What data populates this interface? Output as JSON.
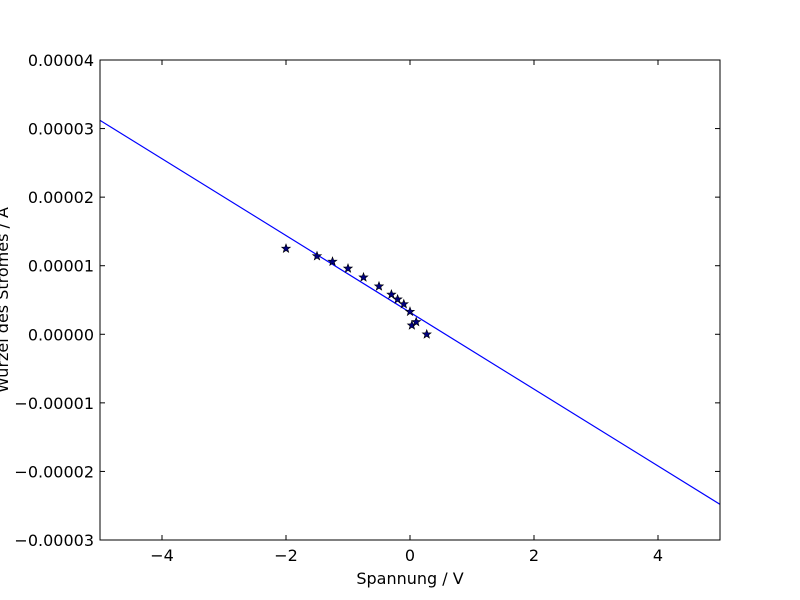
{
  "chart_data": {
    "type": "scatter",
    "title": "",
    "xlabel": "Spannung / V",
    "ylabel": "Wurzel des Stromes / A",
    "xlim": [
      -5,
      5
    ],
    "ylim": [
      -3e-05,
      4e-05
    ],
    "xticks": [
      -4,
      -2,
      0,
      2,
      4
    ],
    "xtick_labels": [
      "−4",
      "−2",
      "0",
      "2",
      "4"
    ],
    "yticks": [
      -3e-05,
      -2e-05,
      -1e-05,
      0,
      1e-05,
      2e-05,
      3e-05,
      4e-05
    ],
    "ytick_labels": [
      "−0.00003",
      "−0.00002",
      "−0.00001",
      "0.00000",
      "0.00001",
      "0.00002",
      "0.00003",
      "0.00004"
    ],
    "grid": false,
    "series": [
      {
        "kind": "scatter",
        "marker": "star",
        "color": "#000080",
        "x": [
          -2.0,
          -1.5,
          -1.25,
          -1.0,
          -0.75,
          -0.5,
          -0.3,
          -0.2,
          -0.1,
          0.0,
          0.03,
          0.1,
          0.27
        ],
        "y": [
          1.25e-05,
          1.14e-05,
          1.06e-05,
          9.6e-06,
          8.3e-06,
          7e-06,
          5.8e-06,
          5.1e-06,
          4.4e-06,
          3.3e-06,
          1.3e-06,
          1.8e-06,
          0.0
        ]
      },
      {
        "kind": "line",
        "color": "#0000ff",
        "x": [
          -5,
          5
        ],
        "y": [
          3.12e-05,
          -2.48e-05
        ]
      }
    ]
  }
}
